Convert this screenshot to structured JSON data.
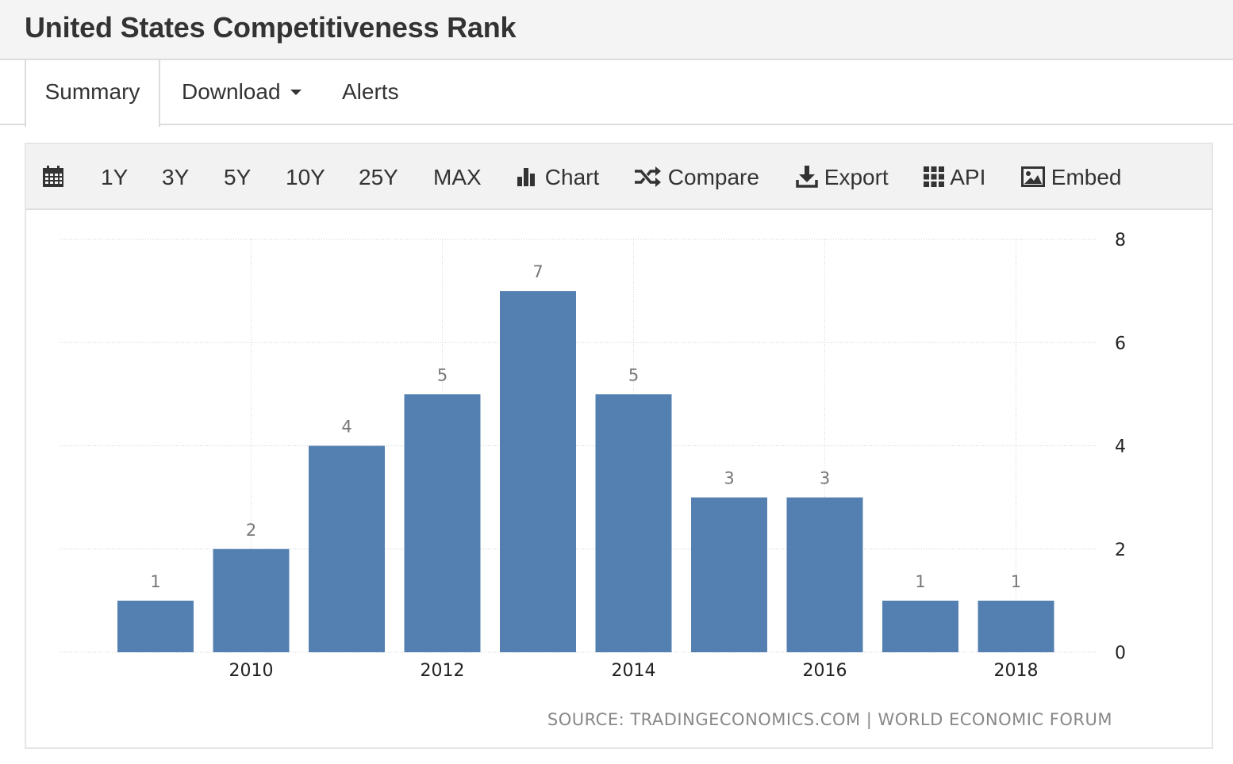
{
  "header": {
    "title": "United States Competitiveness Rank"
  },
  "tabs": {
    "summary": "Summary",
    "download": "Download",
    "alerts": "Alerts"
  },
  "toolbar": {
    "range_1y": "1Y",
    "range_3y": "3Y",
    "range_5y": "5Y",
    "range_10y": "10Y",
    "range_25y": "25Y",
    "range_max": "MAX",
    "chart": "Chart",
    "compare": "Compare",
    "export": "Export",
    "api": "API",
    "embed": "Embed"
  },
  "icons": {
    "calendar": "calendar-icon",
    "chart": "bar-chart-icon",
    "compare": "shuffle-icon",
    "export": "download-icon",
    "api": "grid-icon",
    "embed": "image-icon"
  },
  "source": "SOURCE: TRADINGECONOMICS.COM | WORLD ECONOMIC FORUM",
  "chart_data": {
    "type": "bar",
    "categories": [
      "2009",
      "2010",
      "2011",
      "2012",
      "2013",
      "2014",
      "2015",
      "2016",
      "2017",
      "2018"
    ],
    "values": [
      1,
      2,
      4,
      5,
      7,
      5,
      3,
      3,
      1,
      1
    ],
    "x_tick_labels": [
      "2010",
      "2012",
      "2014",
      "2016",
      "2018"
    ],
    "y_ticks": [
      0,
      2,
      4,
      6,
      8
    ],
    "ylim": [
      0,
      8
    ],
    "y_axis_side": "right",
    "grid": true,
    "data_labels": true,
    "bar_color": "#5480b1"
  }
}
